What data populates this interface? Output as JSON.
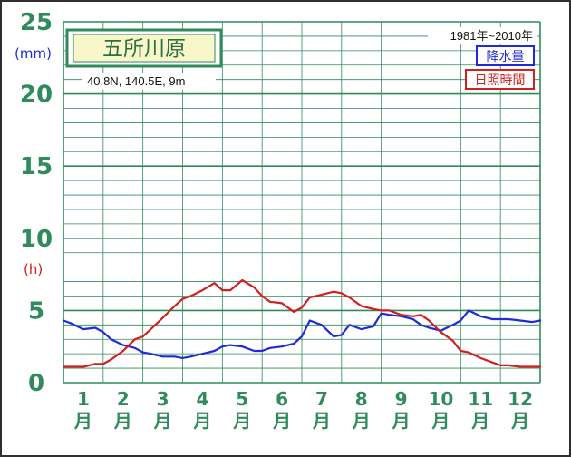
{
  "chart_data": {
    "type": "line",
    "title": "五所川原",
    "coordinates": "40.8N,  140.5E,  9m",
    "period": "1981年~2010年",
    "y_ticks": [
      "0",
      "5",
      "10",
      "15",
      "20",
      "25"
    ],
    "ylim": [
      0,
      25
    ],
    "unit_precip": "(mm)",
    "unit_sun": "(h)",
    "x_numbers": [
      "1",
      "2",
      "3",
      "4",
      "5",
      "6",
      "7",
      "8",
      "9",
      "10",
      "11",
      "12"
    ],
    "x_unit": "月",
    "grid": true,
    "legend_position": "top-right",
    "series": [
      {
        "name": "降水量",
        "color": "#1f2bd6",
        "x": [
          0.0,
          0.2,
          0.5,
          0.8,
          1.0,
          1.2,
          1.5,
          1.8,
          2.0,
          2.2,
          2.5,
          2.8,
          3.0,
          3.2,
          3.5,
          3.8,
          4.0,
          4.2,
          4.5,
          4.8,
          5.0,
          5.2,
          5.5,
          5.8,
          6.0,
          6.2,
          6.5,
          6.8,
          7.0,
          7.2,
          7.5,
          7.8,
          8.0,
          8.2,
          8.5,
          8.8,
          9.0,
          9.2,
          9.5,
          9.8,
          10.0,
          10.2,
          10.5,
          10.8,
          11.0,
          11.2,
          11.5,
          11.8,
          12.0
        ],
        "values": [
          4.3,
          4.1,
          3.7,
          3.8,
          3.5,
          3.0,
          2.6,
          2.4,
          2.1,
          2.0,
          1.8,
          1.8,
          1.7,
          1.8,
          2.0,
          2.2,
          2.5,
          2.6,
          2.5,
          2.2,
          2.2,
          2.4,
          2.5,
          2.7,
          3.2,
          4.3,
          4.0,
          3.2,
          3.3,
          4.0,
          3.7,
          3.9,
          4.8,
          4.7,
          4.6,
          4.4,
          4.0,
          3.8,
          3.6,
          4.0,
          4.3,
          5.0,
          4.6,
          4.4,
          4.4,
          4.4,
          4.3,
          4.2,
          4.3
        ]
      },
      {
        "name": "日照時間",
        "color": "#d11f1f",
        "x": [
          0.0,
          0.2,
          0.5,
          0.8,
          1.0,
          1.2,
          1.5,
          1.8,
          2.0,
          2.2,
          2.5,
          2.8,
          3.0,
          3.2,
          3.5,
          3.8,
          4.0,
          4.2,
          4.5,
          4.8,
          5.0,
          5.2,
          5.5,
          5.8,
          6.0,
          6.2,
          6.5,
          6.8,
          7.0,
          7.2,
          7.5,
          7.8,
          8.0,
          8.2,
          8.5,
          8.8,
          9.0,
          9.2,
          9.5,
          9.8,
          10.0,
          10.2,
          10.5,
          10.8,
          11.0,
          11.2,
          11.5,
          11.8,
          12.0
        ],
        "values": [
          1.1,
          1.1,
          1.1,
          1.3,
          1.3,
          1.6,
          2.2,
          3.0,
          3.2,
          3.7,
          4.5,
          5.3,
          5.8,
          6.0,
          6.4,
          6.9,
          6.4,
          6.4,
          7.1,
          6.6,
          6.0,
          5.6,
          5.5,
          4.9,
          5.2,
          5.9,
          6.1,
          6.3,
          6.2,
          5.9,
          5.3,
          5.1,
          5.0,
          5.0,
          4.7,
          4.6,
          4.7,
          4.3,
          3.5,
          2.9,
          2.2,
          2.1,
          1.7,
          1.4,
          1.2,
          1.2,
          1.1,
          1.1,
          1.1
        ]
      }
    ]
  }
}
